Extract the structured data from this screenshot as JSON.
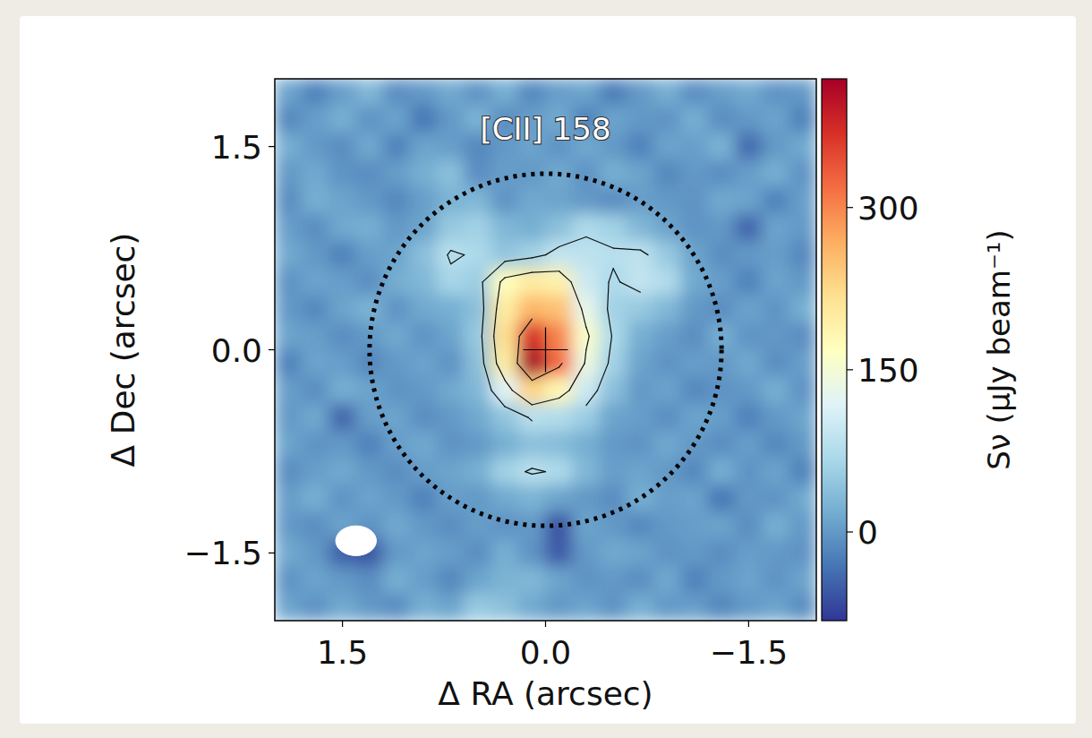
{
  "chart_data": {
    "type": "heatmap",
    "title": "[CII] 158",
    "xlabel": "Δ RA (arcsec)",
    "ylabel": "Δ Dec (arcsec)",
    "xlim": [
      2.0,
      -2.0
    ],
    "ylim": [
      -2.0,
      2.0
    ],
    "xticks": [
      1.5,
      {
        "value": 0,
        "label": "0.0"
      },
      {
        "value": -1.5,
        "label": "−1.5"
      }
    ],
    "yticks": [
      1.5,
      {
        "value": 0,
        "label": "0.0"
      },
      {
        "value": -1.5,
        "label": "−1.5"
      }
    ],
    "x": [
      1.9,
      1.7,
      1.5,
      1.3,
      1.1,
      0.9,
      0.7,
      0.5,
      0.3,
      0.1,
      -0.1,
      -0.3,
      -0.5,
      -0.7,
      -0.9,
      -1.1,
      -1.3,
      -1.5,
      -1.7,
      -1.9
    ],
    "y": [
      1.9,
      1.7,
      1.5,
      1.3,
      1.1,
      0.9,
      0.7,
      0.5,
      0.3,
      0.1,
      -0.1,
      -0.3,
      -0.5,
      -0.7,
      -0.9,
      -1.1,
      -1.3,
      -1.5,
      -1.7,
      -1.9
    ],
    "cells": [
      [
        10,
        -20,
        5,
        30,
        -10,
        0,
        15,
        -5,
        20,
        -15,
        5,
        10,
        -25,
        0,
        20,
        -10,
        5,
        15,
        -5,
        0
      ],
      [
        -15,
        5,
        20,
        -5,
        10,
        -30,
        0,
        25,
        -10,
        5,
        15,
        -20,
        10,
        0,
        -5,
        20,
        -10,
        0,
        10,
        -20
      ],
      [
        20,
        0,
        -10,
        15,
        -20,
        10,
        5,
        -15,
        0,
        10,
        -5,
        15,
        0,
        -20,
        10,
        5,
        25,
        -40,
        0,
        15
      ],
      [
        0,
        15,
        -5,
        -10,
        5,
        20,
        40,
        -10,
        5,
        0,
        15,
        -5,
        20,
        10,
        -15,
        0,
        -10,
        5,
        20,
        -5
      ],
      [
        -10,
        20,
        10,
        0,
        -15,
        5,
        25,
        30,
        -5,
        15,
        10,
        0,
        -10,
        5,
        0,
        -5,
        15,
        10,
        -20,
        5
      ],
      [
        5,
        -10,
        15,
        20,
        0,
        10,
        50,
        60,
        30,
        20,
        40,
        70,
        60,
        30,
        10,
        -5,
        0,
        -45,
        10,
        0
      ],
      [
        15,
        0,
        -20,
        5,
        10,
        40,
        80,
        70,
        45,
        60,
        90,
        85,
        80,
        85,
        50,
        10,
        -10,
        0,
        5,
        -15
      ],
      [
        -5,
        10,
        5,
        -10,
        20,
        30,
        65,
        55,
        170,
        200,
        190,
        100,
        70,
        90,
        75,
        15,
        5,
        -20,
        10,
        0
      ],
      [
        0,
        -15,
        10,
        25,
        -5,
        15,
        20,
        40,
        200,
        260,
        250,
        130,
        60,
        50,
        30,
        0,
        -10,
        10,
        -5,
        20
      ],
      [
        10,
        5,
        -10,
        0,
        15,
        -5,
        10,
        50,
        220,
        370,
        300,
        160,
        70,
        20,
        5,
        -10,
        20,
        -5,
        0,
        -10
      ],
      [
        -20,
        10,
        5,
        -15,
        0,
        10,
        -5,
        40,
        200,
        420,
        320,
        140,
        60,
        10,
        -5,
        5,
        0,
        15,
        -10,
        5
      ],
      [
        5,
        -10,
        20,
        10,
        -5,
        0,
        15,
        30,
        120,
        230,
        180,
        100,
        40,
        0,
        10,
        -15,
        -5,
        0,
        20,
        -5
      ],
      [
        0,
        15,
        -45,
        5,
        10,
        -10,
        0,
        15,
        45,
        80,
        75,
        55,
        10,
        5,
        -10,
        10,
        5,
        -20,
        0,
        10
      ],
      [
        10,
        -5,
        0,
        -20,
        5,
        15,
        -5,
        0,
        20,
        40,
        35,
        20,
        0,
        -5,
        15,
        0,
        -10,
        5,
        -15,
        0
      ],
      [
        -10,
        5,
        15,
        0,
        -10,
        5,
        10,
        20,
        60,
        80,
        70,
        30,
        5,
        10,
        0,
        -15,
        20,
        -5,
        10,
        -20
      ],
      [
        5,
        20,
        -5,
        10,
        0,
        -20,
        5,
        0,
        15,
        25,
        10,
        0,
        -10,
        20,
        5,
        10,
        -30,
        0,
        -5,
        15
      ],
      [
        0,
        -10,
        10,
        -5,
        15,
        0,
        -10,
        5,
        -5,
        0,
        -60,
        10,
        0,
        -15,
        0,
        5,
        10,
        -10,
        20,
        0
      ],
      [
        15,
        0,
        -50,
        -60,
        0,
        10,
        5,
        -10,
        20,
        -5,
        -55,
        0,
        15,
        10,
        -5,
        0,
        -10,
        5,
        0,
        -5
      ],
      [
        -5,
        10,
        0,
        -10,
        20,
        5,
        -15,
        10,
        25,
        30,
        10,
        -5,
        0,
        -10,
        15,
        -20,
        0,
        10,
        -5,
        10
      ],
      [
        10,
        -5,
        15,
        0,
        -10,
        20,
        10,
        50,
        40,
        15,
        0,
        10,
        -5,
        20,
        0,
        5,
        -15,
        0,
        10,
        -10
      ]
    ],
    "colorbar_label": "Sν (μJy beam⁻¹)",
    "colorbar_lim": [
      -82,
      419
    ],
    "colorbar_ticks": [
      0,
      150,
      300
    ],
    "contour_levels": [
      -75,
      75,
      150,
      300
    ],
    "aperture_radius": 1.3,
    "beam": {
      "x": 1.4,
      "y": -1.41,
      "major": 0.3,
      "minor": 0.22
    },
    "center": [
      0,
      0
    ]
  }
}
